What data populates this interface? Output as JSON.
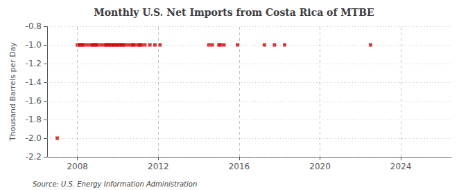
{
  "chart_data": {
    "type": "scatter",
    "title": "Monthly U.S. Net Imports from Costa Rica of MTBE",
    "ylabel": "Thousand Barrels per Day",
    "annotations": [
      "Source: U.S. Energy Information Administration"
    ],
    "x": [
      2007.0,
      2008.0,
      2008.083,
      2008.167,
      2008.25,
      2008.333,
      2008.5,
      2008.667,
      2008.75,
      2008.833,
      2008.917,
      2009.0,
      2009.167,
      2009.333,
      2009.417,
      2009.5,
      2009.583,
      2009.667,
      2009.75,
      2009.833,
      2009.917,
      2010.0,
      2010.083,
      2010.167,
      2010.25,
      2010.333,
      2010.5,
      2010.667,
      2010.75,
      2010.833,
      2011.0,
      2011.083,
      2011.167,
      2011.333,
      2011.583,
      2011.833,
      2012.083,
      2014.5,
      2014.667,
      2015.0,
      2015.083,
      2015.25,
      2015.917,
      2017.25,
      2017.75,
      2018.25,
      2022.5
    ],
    "values": [
      -2.0,
      -1.0,
      -1.0,
      -1.0,
      -1.0,
      -1.0,
      -1.0,
      -1.0,
      -1.0,
      -1.0,
      -1.0,
      -1.0,
      -1.0,
      -1.0,
      -1.0,
      -1.0,
      -1.0,
      -1.0,
      -1.0,
      -1.0,
      -1.0,
      -1.0,
      -1.0,
      -1.0,
      -1.0,
      -1.0,
      -1.0,
      -1.0,
      -1.0,
      -1.0,
      -1.0,
      -1.0,
      -1.0,
      -1.0,
      -1.0,
      -1.0,
      -1.0,
      -1.0,
      -1.0,
      -1.0,
      -1.0,
      -1.0,
      -1.0,
      -1.0,
      -1.0,
      -1.0,
      -1.0
    ],
    "color": "#cc0000",
    "marker": "square",
    "xlim": [
      2006.5,
      2026.5
    ],
    "xticks": [
      2008,
      2012,
      2016,
      2020,
      2024
    ],
    "ylim": [
      -2.2,
      -0.8
    ],
    "yticks": [
      -2.2,
      {
        "value": -2.0,
        "label": "-2.0"
      },
      -1.8,
      -1.6,
      -1.4,
      -1.2,
      {
        "value": -1.0,
        "label": "-1.0"
      },
      -0.8
    ],
    "grid": true
  }
}
